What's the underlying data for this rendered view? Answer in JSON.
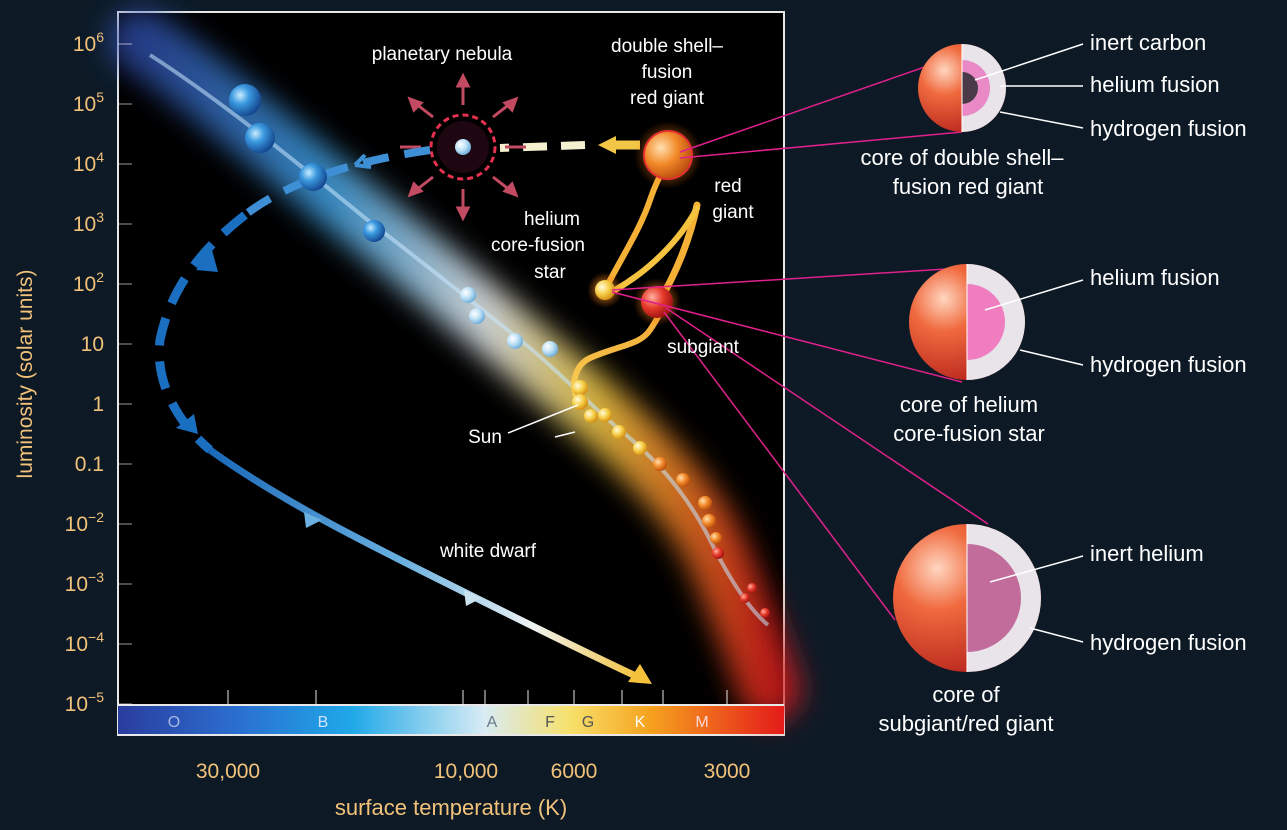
{
  "colors": {
    "background": "#0d1a26",
    "plot_background": "#000000",
    "axis_text": "#f2c27a",
    "label_text": "#ffffff",
    "leader_line": "#e0208c",
    "spectral_O": "#2a3d9e",
    "spectral_M": "#e01818"
  },
  "axes": {
    "ylabel": "luminosity (solar units)",
    "xlabel": "surface temperature (K)",
    "y_scale": "log",
    "x_scale": "log, decreasing to the right",
    "ylim": [
      "10^-5",
      "10^6"
    ],
    "yticks": [
      {
        "base": "10",
        "exp": "6"
      },
      {
        "base": "10",
        "exp": "5"
      },
      {
        "base": "10",
        "exp": "4"
      },
      {
        "base": "10",
        "exp": "3"
      },
      {
        "base": "10",
        "exp": "2"
      },
      {
        "base": "10",
        "exp": ""
      },
      {
        "base": "1",
        "exp": ""
      },
      {
        "base": "0.1",
        "exp": ""
      },
      {
        "base": "10",
        "exp": "−2"
      },
      {
        "base": "10",
        "exp": "−3"
      },
      {
        "base": "10",
        "exp": "−4"
      },
      {
        "base": "10",
        "exp": "−5"
      }
    ],
    "xticks": [
      "30,000",
      "10,000",
      "6000",
      "3000"
    ],
    "spectral_classes": [
      "O",
      "B",
      "A",
      "F",
      "G",
      "K",
      "M"
    ]
  },
  "labels": {
    "planetary_nebula": "planetary nebula",
    "double_shell": [
      "double shell–",
      "fusion",
      "red giant"
    ],
    "red_giant": [
      "red",
      "giant"
    ],
    "helium_core": [
      "helium",
      "core-fusion",
      "star"
    ],
    "subgiant": "subgiant",
    "sun": "Sun",
    "white_dwarf": "white dwarf"
  },
  "cores": [
    {
      "caption": [
        "core of double shell–",
        "fusion red giant"
      ],
      "layers": [
        "inert carbon",
        "helium fusion",
        "hydrogen fusion"
      ]
    },
    {
      "caption": [
        "core of helium",
        "core-fusion star"
      ],
      "layers": [
        "helium fusion",
        "hydrogen fusion"
      ]
    },
    {
      "caption": [
        "core of",
        "subgiant/red giant"
      ],
      "layers": [
        "inert helium",
        "hydrogen fusion"
      ]
    }
  ]
}
